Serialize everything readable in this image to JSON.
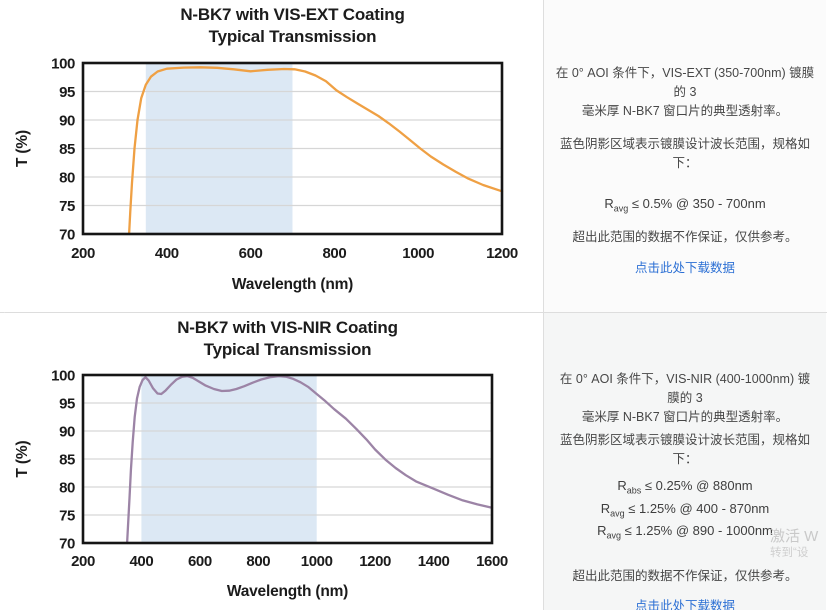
{
  "chart_data": [
    {
      "type": "line",
      "title": "N-BK7 with VIS-EXT Coating",
      "subtitle": "Typical Transmission",
      "xlabel": "Wavelength (nm)",
      "ylabel": "T (%)",
      "xlim": [
        200,
        1200
      ],
      "ylim": [
        70,
        100
      ],
      "x_ticks": [
        200,
        400,
        600,
        800,
        1000,
        1200
      ],
      "y_ticks": [
        70,
        75,
        80,
        85,
        90,
        95,
        100
      ],
      "grid": "horizontal",
      "shaded_band_nm": [
        350,
        700
      ],
      "band_color": "#dce8f4",
      "line_color": "#efa044",
      "series": [
        {
          "name": "Transmission",
          "points": [
            [
              310,
              70
            ],
            [
              313,
              74
            ],
            [
              317,
              79
            ],
            [
              323,
              85
            ],
            [
              330,
              90
            ],
            [
              339,
              93.8
            ],
            [
              350,
              96.2
            ],
            [
              362,
              97.6
            ],
            [
              378,
              98.5
            ],
            [
              400,
              99.0
            ],
            [
              440,
              99.2
            ],
            [
              480,
              99.25
            ],
            [
              520,
              99.15
            ],
            [
              560,
              98.9
            ],
            [
              600,
              98.55
            ],
            [
              640,
              98.8
            ],
            [
              680,
              98.95
            ],
            [
              705,
              98.9
            ],
            [
              730,
              98.5
            ],
            [
              755,
              97.8
            ],
            [
              780,
              96.8
            ],
            [
              805,
              95.2
            ],
            [
              830,
              94.0
            ],
            [
              855,
              92.9
            ],
            [
              880,
              91.8
            ],
            [
              905,
              90.7
            ],
            [
              930,
              89.4
            ],
            [
              955,
              88.0
            ],
            [
              980,
              86.5
            ],
            [
              1005,
              85.0
            ],
            [
              1030,
              83.6
            ],
            [
              1060,
              82.2
            ],
            [
              1090,
              80.9
            ],
            [
              1120,
              79.7
            ],
            [
              1155,
              78.6
            ],
            [
              1200,
              77.5
            ]
          ]
        }
      ]
    },
    {
      "type": "line",
      "title": "N-BK7 with VIS-NIR Coating",
      "subtitle": "Typical Transmission",
      "xlabel": "Wavelength (nm)",
      "ylabel": "T (%)",
      "xlim": [
        200,
        1600
      ],
      "ylim": [
        70,
        100
      ],
      "x_ticks": [
        200,
        400,
        600,
        800,
        1000,
        1200,
        1400,
        1600
      ],
      "y_ticks": [
        70,
        75,
        80,
        85,
        90,
        95,
        100
      ],
      "grid": "horizontal",
      "shaded_band_nm": [
        400,
        1000
      ],
      "band_color": "#dce8f4",
      "line_color": "#9c84a6",
      "series": [
        {
          "name": "Transmission",
          "points": [
            [
              351,
              70
            ],
            [
              355,
              74
            ],
            [
              359,
              78
            ],
            [
              364,
              83
            ],
            [
              370,
              88
            ],
            [
              377,
              92.5
            ],
            [
              385,
              95.8
            ],
            [
              394,
              97.9
            ],
            [
              404,
              99.1
            ],
            [
              414,
              99.6
            ],
            [
              425,
              99.0
            ],
            [
              440,
              97.6
            ],
            [
              455,
              96.7
            ],
            [
              468,
              96.6
            ],
            [
              482,
              97.2
            ],
            [
              500,
              98.2
            ],
            [
              520,
              99.2
            ],
            [
              540,
              99.7
            ],
            [
              558,
              99.8
            ],
            [
              575,
              99.5
            ],
            [
              595,
              98.9
            ],
            [
              620,
              98.1
            ],
            [
              648,
              97.5
            ],
            [
              675,
              97.15
            ],
            [
              700,
              97.2
            ],
            [
              725,
              97.5
            ],
            [
              752,
              98.0
            ],
            [
              780,
              98.6
            ],
            [
              810,
              99.2
            ],
            [
              840,
              99.6
            ],
            [
              870,
              99.8
            ],
            [
              895,
              99.7
            ],
            [
              920,
              99.3
            ],
            [
              945,
              98.7
            ],
            [
              970,
              97.9
            ],
            [
              1000,
              96.6
            ],
            [
              1030,
              95.3
            ],
            [
              1060,
              93.9
            ],
            [
              1100,
              92.2
            ],
            [
              1135,
              90.4
            ],
            [
              1170,
              88.5
            ],
            [
              1200,
              86.7
            ],
            [
              1235,
              84.9
            ],
            [
              1270,
              83.4
            ],
            [
              1305,
              82.1
            ],
            [
              1340,
              81.0
            ],
            [
              1400,
              79.7
            ],
            [
              1450,
              78.6
            ],
            [
              1500,
              77.6
            ],
            [
              1550,
              76.9
            ],
            [
              1600,
              76.3
            ]
          ]
        }
      ]
    }
  ],
  "panels": [
    {
      "desc_line1": "在 0° AOI 条件下，VIS-EXT (350-700nm) 镀膜的 3",
      "desc_line2": "毫米厚 N-BK7 窗口片的典型透射率。",
      "band_note": "蓝色阴影区域表示镀膜设计波长范围，规格如下：",
      "specs": [
        {
          "sym": "R",
          "sub": "avg",
          "rest": "≤ 0.5% @ 350 - 700nm"
        }
      ],
      "disclaimer": "超出此范围的数据不作保证，仅供参考。",
      "link_label": "点击此处下载数据"
    },
    {
      "desc_line1": "在 0° AOI 条件下，VIS-NIR (400-1000nm) 镀膜的 3",
      "desc_line2": "毫米厚 N-BK7 窗口片的典型透射率。",
      "band_note": "蓝色阴影区域表示镀膜设计波长范围，规格如下：",
      "specs": [
        {
          "sym": "R",
          "sub": "abs",
          "rest": "≤ 0.25% @ 880nm"
        },
        {
          "sym": "R",
          "sub": "avg",
          "rest": "≤ 1.25% @ 400 - 870nm"
        },
        {
          "sym": "R",
          "sub": "avg",
          "rest": "≤ 1.25% @ 890 - 1000nm"
        }
      ],
      "disclaimer": "超出此范围的数据不作保证，仅供参考。",
      "link_label": "点击此处下载数据"
    }
  ],
  "watermark": {
    "line1": "激活 W",
    "line2": "转到“设"
  },
  "colors": {
    "vis_ext_line": "#efa044",
    "vis_nir_line": "#9c84a6",
    "design_band": "#dce8f4",
    "link_blue": "#2b6fd4"
  }
}
